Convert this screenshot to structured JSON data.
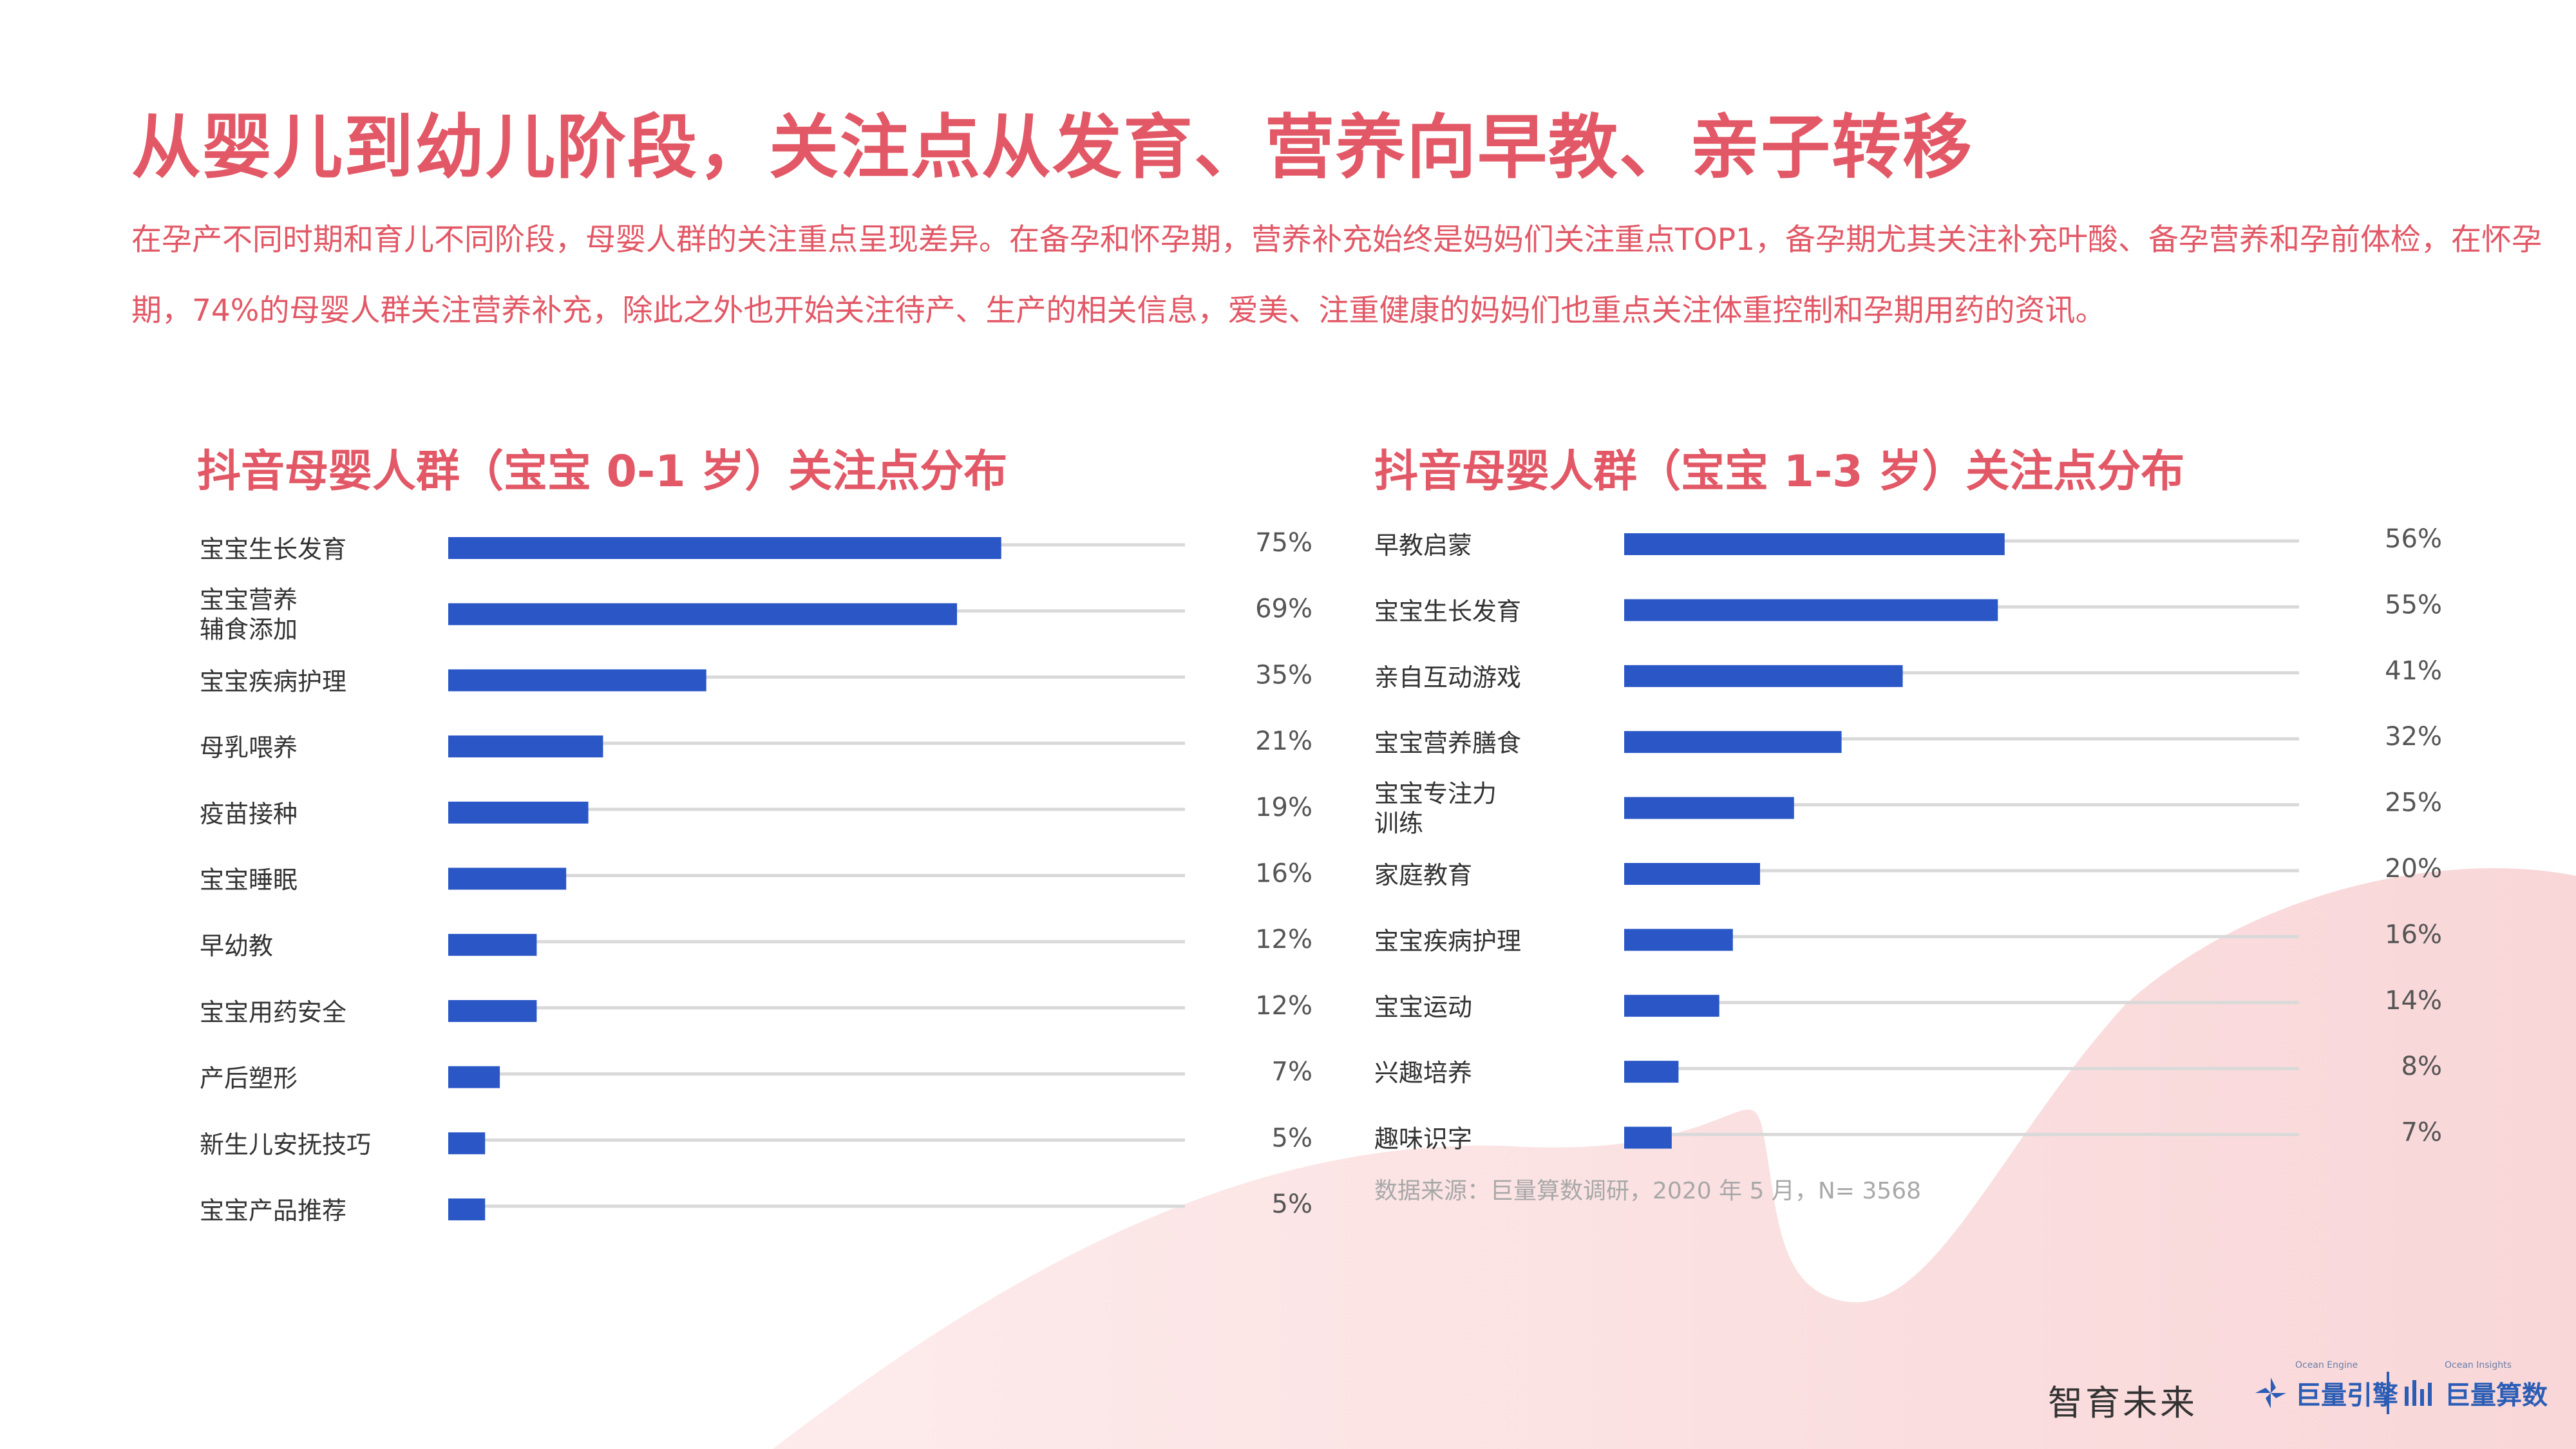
{
  "title": "从婴儿到幼儿阶段，关注点从发育、营养向早教、亲子转移",
  "intro": "在孕产不同时期和育儿不同阶段，母婴人群的关注重点呈现差异。在备孕和怀孕期，营养补充始终是妈妈们关注重点TOP1，备孕期尤其关注补充叶酸、备孕营养和孕前体检，在怀孕期，74%的母婴人群关注营养补充，除此之外也开始关注待产、生产的相关信息，爱美、注重健康的妈妈们也重点关注体重控制和孕期用药的资讯。",
  "colors": {
    "accent": "#e25866",
    "bar": "#2a56c6",
    "track": "#d9d9d9",
    "wave": "#fbe3e3"
  },
  "chart_data": [
    {
      "type": "bar",
      "orientation": "horizontal",
      "title": "抖音母婴人群（宝宝 0-1 岁）关注点分布",
      "categories": [
        "宝宝生长发育",
        "宝宝营养\n辅食添加",
        "宝宝疾病护理",
        "母乳喂养",
        "疫苗接种",
        "宝宝睡眠",
        "早幼教",
        "宝宝用药安全",
        "产后塑形",
        "新生儿安抚技巧",
        "宝宝产品推荐"
      ],
      "values": [
        75,
        69,
        35,
        21,
        19,
        16,
        12,
        12,
        7,
        5,
        5
      ],
      "value_labels": [
        "75%",
        "69%",
        "35%",
        "21%",
        "19%",
        "16%",
        "12%",
        "12%",
        "7%",
        "5%",
        "5%"
      ],
      "xlim": [
        0,
        100
      ],
      "unit": "%"
    },
    {
      "type": "bar",
      "orientation": "horizontal",
      "title": "抖音母婴人群（宝宝 1-3 岁）关注点分布",
      "categories": [
        "早教启蒙",
        "宝宝生长发育",
        "亲自互动游戏",
        "宝宝营养膳食",
        "宝宝专注力\n训练",
        "家庭教育",
        "宝宝疾病护理",
        "宝宝运动",
        "兴趣培养",
        "趣味识字"
      ],
      "values": [
        56,
        55,
        41,
        32,
        25,
        20,
        16,
        14,
        8,
        7
      ],
      "value_labels": [
        "56%",
        "55%",
        "41%",
        "32%",
        "25%",
        "20%",
        "16%",
        "14%",
        "8%",
        "7%"
      ],
      "xlim": [
        0,
        100
      ],
      "unit": "%"
    }
  ],
  "source": "数据来源：巨量算数调研，2020 年 5 月，N= 3568",
  "footer": {
    "slogan": "智育未来",
    "logo1_name": "巨量引擎",
    "logo1_en": "Ocean Engine",
    "logo2_name": "巨量算数",
    "logo2_en": "Ocean Insights",
    "logo1_icon": "ocean-engine-icon",
    "logo2_icon": "ocean-insights-icon"
  }
}
